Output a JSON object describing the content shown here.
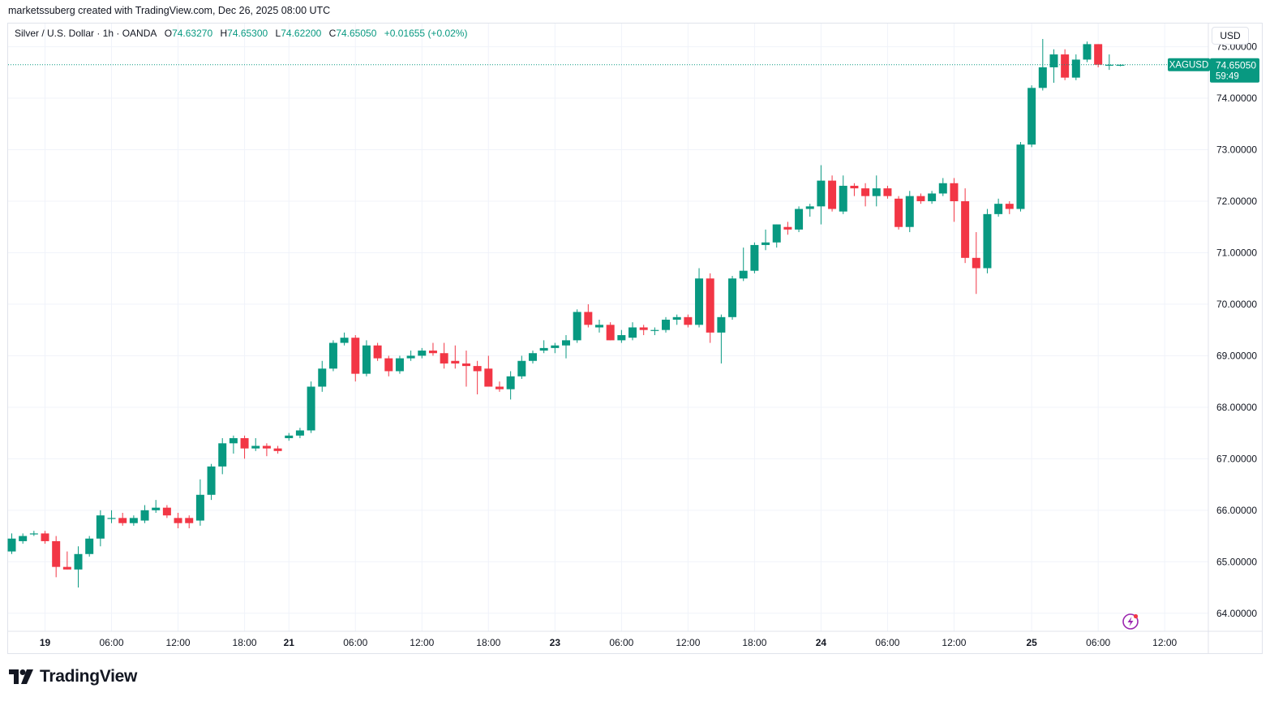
{
  "header": {
    "credit": "marketssuberg created with TradingView.com, Dec 26, 2025 08:00 UTC"
  },
  "legend": {
    "symbol": "Silver / U.S. Dollar · 1h · OANDA",
    "o_label": "O",
    "o_value": "74.63270",
    "h_label": "H",
    "h_value": "74.65300",
    "l_label": "L",
    "l_value": "74.62200",
    "c_label": "C",
    "c_value": "74.65050",
    "change": "+0.01655 (+0.02%)"
  },
  "currency_button": "USD",
  "price_marker": {
    "symbol": "XAGUSD",
    "price": "74.65050",
    "countdown": "59:49"
  },
  "footer": {
    "brand": "TradingView"
  },
  "colors": {
    "up": "#089981",
    "down": "#f23645",
    "grid": "#f0f3fa",
    "axis_text": "#131722",
    "last_price_line": "#089981"
  },
  "icons": {
    "brand_logo": "tradingview-logo-icon",
    "alert": "lightning-alert-icon"
  },
  "chart_data": {
    "type": "candlestick",
    "interval": "1h",
    "ylim": [
      63.65,
      75.45
    ],
    "y_ticks": [
      "64.00000",
      "65.00000",
      "66.00000",
      "67.00000",
      "68.00000",
      "69.00000",
      "70.00000",
      "71.00000",
      "72.00000",
      "73.00000",
      "74.00000",
      "75.00000"
    ],
    "x_ticks": [
      {
        "label": "19",
        "bold": true,
        "bar": 3
      },
      {
        "label": "06:00",
        "bold": false,
        "bar": 9
      },
      {
        "label": "12:00",
        "bold": false,
        "bar": 15
      },
      {
        "label": "18:00",
        "bold": false,
        "bar": 21
      },
      {
        "label": "21",
        "bold": true,
        "bar": 25
      },
      {
        "label": "06:00",
        "bold": false,
        "bar": 31
      },
      {
        "label": "12:00",
        "bold": false,
        "bar": 37
      },
      {
        "label": "18:00",
        "bold": false,
        "bar": 43
      },
      {
        "label": "23",
        "bold": true,
        "bar": 49
      },
      {
        "label": "06:00",
        "bold": false,
        "bar": 55
      },
      {
        "label": "12:00",
        "bold": false,
        "bar": 61
      },
      {
        "label": "18:00",
        "bold": false,
        "bar": 67
      },
      {
        "label": "24",
        "bold": true,
        "bar": 73
      },
      {
        "label": "06:00",
        "bold": false,
        "bar": 79
      },
      {
        "label": "12:00",
        "bold": false,
        "bar": 85
      },
      {
        "label": "25",
        "bold": true,
        "bar": 92
      },
      {
        "label": "06:00",
        "bold": false,
        "bar": 98
      },
      {
        "label": "12:00",
        "bold": false,
        "bar": 104
      }
    ],
    "last_price": 74.6505,
    "candles": [
      {
        "o": 65.2,
        "h": 65.55,
        "l": 65.15,
        "c": 65.45
      },
      {
        "o": 65.4,
        "h": 65.55,
        "l": 65.35,
        "c": 65.5
      },
      {
        "o": 65.55,
        "h": 65.6,
        "l": 65.5,
        "c": 65.55
      },
      {
        "o": 65.55,
        "h": 65.6,
        "l": 65.35,
        "c": 65.4
      },
      {
        "o": 65.4,
        "h": 65.5,
        "l": 64.7,
        "c": 64.9
      },
      {
        "o": 64.9,
        "h": 65.2,
        "l": 64.85,
        "c": 64.85
      },
      {
        "o": 64.85,
        "h": 65.3,
        "l": 64.5,
        "c": 65.15
      },
      {
        "o": 65.15,
        "h": 65.5,
        "l": 65.1,
        "c": 65.45
      },
      {
        "o": 65.45,
        "h": 66.0,
        "l": 65.3,
        "c": 65.9
      },
      {
        "o": 65.85,
        "h": 66.0,
        "l": 65.75,
        "c": 65.85
      },
      {
        "o": 65.85,
        "h": 65.95,
        "l": 65.7,
        "c": 65.75
      },
      {
        "o": 65.75,
        "h": 65.9,
        "l": 65.7,
        "c": 65.85
      },
      {
        "o": 65.8,
        "h": 66.1,
        "l": 65.75,
        "c": 66.0
      },
      {
        "o": 66.0,
        "h": 66.2,
        "l": 65.95,
        "c": 66.05
      },
      {
        "o": 66.05,
        "h": 66.1,
        "l": 65.85,
        "c": 65.9
      },
      {
        "o": 65.85,
        "h": 65.95,
        "l": 65.65,
        "c": 65.75
      },
      {
        "o": 65.85,
        "h": 65.9,
        "l": 65.65,
        "c": 65.75
      },
      {
        "o": 65.8,
        "h": 66.6,
        "l": 65.7,
        "c": 66.3
      },
      {
        "o": 66.3,
        "h": 66.9,
        "l": 66.2,
        "c": 66.85
      },
      {
        "o": 66.85,
        "h": 67.4,
        "l": 66.7,
        "c": 67.3
      },
      {
        "o": 67.3,
        "h": 67.45,
        "l": 67.1,
        "c": 67.4
      },
      {
        "o": 67.4,
        "h": 67.45,
        "l": 67.0,
        "c": 67.2
      },
      {
        "o": 67.2,
        "h": 67.4,
        "l": 67.15,
        "c": 67.25
      },
      {
        "o": 67.25,
        "h": 67.3,
        "l": 67.05,
        "c": 67.2
      },
      {
        "o": 67.2,
        "h": 67.25,
        "l": 67.1,
        "c": 67.15
      },
      {
        "o": 67.4,
        "h": 67.5,
        "l": 67.35,
        "c": 67.45
      },
      {
        "o": 67.45,
        "h": 67.6,
        "l": 67.4,
        "c": 67.55
      },
      {
        "o": 67.55,
        "h": 68.5,
        "l": 67.5,
        "c": 68.4
      },
      {
        "o": 68.4,
        "h": 68.9,
        "l": 68.3,
        "c": 68.75
      },
      {
        "o": 68.75,
        "h": 69.3,
        "l": 68.7,
        "c": 69.25
      },
      {
        "o": 69.25,
        "h": 69.45,
        "l": 69.2,
        "c": 69.35
      },
      {
        "o": 69.35,
        "h": 69.4,
        "l": 68.5,
        "c": 68.65
      },
      {
        "o": 68.65,
        "h": 69.3,
        "l": 68.6,
        "c": 69.2
      },
      {
        "o": 69.2,
        "h": 69.25,
        "l": 68.9,
        "c": 68.95
      },
      {
        "o": 68.95,
        "h": 69.0,
        "l": 68.6,
        "c": 68.7
      },
      {
        "o": 68.7,
        "h": 69.0,
        "l": 68.65,
        "c": 68.95
      },
      {
        "o": 68.95,
        "h": 69.1,
        "l": 68.9,
        "c": 69.0
      },
      {
        "o": 69.0,
        "h": 69.15,
        "l": 68.95,
        "c": 69.1
      },
      {
        "o": 69.1,
        "h": 69.25,
        "l": 69.0,
        "c": 69.05
      },
      {
        "o": 69.05,
        "h": 69.25,
        "l": 68.75,
        "c": 68.85
      },
      {
        "o": 68.9,
        "h": 69.2,
        "l": 68.75,
        "c": 68.85
      },
      {
        "o": 68.85,
        "h": 69.1,
        "l": 68.4,
        "c": 68.8
      },
      {
        "o": 68.8,
        "h": 68.9,
        "l": 68.25,
        "c": 68.7
      },
      {
        "o": 68.75,
        "h": 69.0,
        "l": 68.5,
        "c": 68.4
      },
      {
        "o": 68.4,
        "h": 68.5,
        "l": 68.3,
        "c": 68.35
      },
      {
        "o": 68.35,
        "h": 68.7,
        "l": 68.15,
        "c": 68.6
      },
      {
        "o": 68.6,
        "h": 69.0,
        "l": 68.55,
        "c": 68.9
      },
      {
        "o": 68.9,
        "h": 69.1,
        "l": 68.85,
        "c": 69.05
      },
      {
        "o": 69.1,
        "h": 69.3,
        "l": 69.05,
        "c": 69.15
      },
      {
        "o": 69.15,
        "h": 69.25,
        "l": 69.05,
        "c": 69.2
      },
      {
        "o": 69.2,
        "h": 69.4,
        "l": 68.95,
        "c": 69.3
      },
      {
        "o": 69.3,
        "h": 69.9,
        "l": 69.25,
        "c": 69.85
      },
      {
        "o": 69.85,
        "h": 70.0,
        "l": 69.55,
        "c": 69.6
      },
      {
        "o": 69.55,
        "h": 69.7,
        "l": 69.45,
        "c": 69.6
      },
      {
        "o": 69.6,
        "h": 69.65,
        "l": 69.3,
        "c": 69.3
      },
      {
        "o": 69.3,
        "h": 69.5,
        "l": 69.25,
        "c": 69.4
      },
      {
        "o": 69.35,
        "h": 69.65,
        "l": 69.3,
        "c": 69.55
      },
      {
        "o": 69.55,
        "h": 69.6,
        "l": 69.4,
        "c": 69.5
      },
      {
        "o": 69.5,
        "h": 69.55,
        "l": 69.4,
        "c": 69.5
      },
      {
        "o": 69.5,
        "h": 69.75,
        "l": 69.45,
        "c": 69.7
      },
      {
        "o": 69.7,
        "h": 69.8,
        "l": 69.6,
        "c": 69.75
      },
      {
        "o": 69.75,
        "h": 69.8,
        "l": 69.55,
        "c": 69.6
      },
      {
        "o": 69.6,
        "h": 70.7,
        "l": 69.55,
        "c": 70.5
      },
      {
        "o": 70.5,
        "h": 70.6,
        "l": 69.25,
        "c": 69.45
      },
      {
        "o": 69.45,
        "h": 69.8,
        "l": 68.85,
        "c": 69.75
      },
      {
        "o": 69.75,
        "h": 70.55,
        "l": 69.7,
        "c": 70.5
      },
      {
        "o": 70.5,
        "h": 71.1,
        "l": 70.45,
        "c": 70.65
      },
      {
        "o": 70.65,
        "h": 71.2,
        "l": 70.6,
        "c": 71.15
      },
      {
        "o": 71.15,
        "h": 71.45,
        "l": 71.05,
        "c": 71.2
      },
      {
        "o": 71.2,
        "h": 71.55,
        "l": 71.1,
        "c": 71.55
      },
      {
        "o": 71.5,
        "h": 71.6,
        "l": 71.35,
        "c": 71.45
      },
      {
        "o": 71.45,
        "h": 71.9,
        "l": 71.4,
        "c": 71.85
      },
      {
        "o": 71.85,
        "h": 71.95,
        "l": 71.7,
        "c": 71.9
      },
      {
        "o": 71.9,
        "h": 72.7,
        "l": 71.55,
        "c": 72.4
      },
      {
        "o": 72.4,
        "h": 72.5,
        "l": 71.8,
        "c": 71.85
      },
      {
        "o": 71.8,
        "h": 72.5,
        "l": 71.75,
        "c": 72.3
      },
      {
        "o": 72.3,
        "h": 72.35,
        "l": 72.1,
        "c": 72.25
      },
      {
        "o": 72.25,
        "h": 72.35,
        "l": 71.9,
        "c": 72.1
      },
      {
        "o": 72.1,
        "h": 72.5,
        "l": 71.9,
        "c": 72.25
      },
      {
        "o": 72.25,
        "h": 72.3,
        "l": 72.05,
        "c": 72.1
      },
      {
        "o": 72.05,
        "h": 72.1,
        "l": 71.45,
        "c": 71.5
      },
      {
        "o": 71.5,
        "h": 72.2,
        "l": 71.4,
        "c": 72.1
      },
      {
        "o": 72.1,
        "h": 72.15,
        "l": 71.95,
        "c": 72.0
      },
      {
        "o": 72.0,
        "h": 72.2,
        "l": 71.95,
        "c": 72.15
      },
      {
        "o": 72.15,
        "h": 72.45,
        "l": 72.1,
        "c": 72.35
      },
      {
        "o": 72.35,
        "h": 72.45,
        "l": 71.6,
        "c": 72.0
      },
      {
        "o": 72.0,
        "h": 72.25,
        "l": 70.8,
        "c": 70.9
      },
      {
        "o": 70.9,
        "h": 71.4,
        "l": 70.2,
        "c": 70.7
      },
      {
        "o": 70.7,
        "h": 71.85,
        "l": 70.6,
        "c": 71.75
      },
      {
        "o": 71.75,
        "h": 72.05,
        "l": 71.7,
        "c": 71.95
      },
      {
        "o": 71.95,
        "h": 72.0,
        "l": 71.75,
        "c": 71.85
      },
      {
        "o": 71.85,
        "h": 73.15,
        "l": 71.8,
        "c": 73.1
      },
      {
        "o": 73.1,
        "h": 74.25,
        "l": 73.05,
        "c": 74.2
      },
      {
        "o": 74.2,
        "h": 75.15,
        "l": 74.15,
        "c": 74.6
      },
      {
        "o": 74.6,
        "h": 74.95,
        "l": 74.3,
        "c": 74.85
      },
      {
        "o": 74.85,
        "h": 74.95,
        "l": 74.35,
        "c": 74.4
      },
      {
        "o": 74.4,
        "h": 74.85,
        "l": 74.35,
        "c": 74.75
      },
      {
        "o": 74.75,
        "h": 75.1,
        "l": 74.7,
        "c": 75.05
      },
      {
        "o": 75.05,
        "h": 75.05,
        "l": 74.6,
        "c": 74.65
      },
      {
        "o": 74.65,
        "h": 74.85,
        "l": 74.55,
        "c": 74.65
      },
      {
        "o": 74.63,
        "h": 74.66,
        "l": 74.62,
        "c": 74.65
      }
    ]
  }
}
